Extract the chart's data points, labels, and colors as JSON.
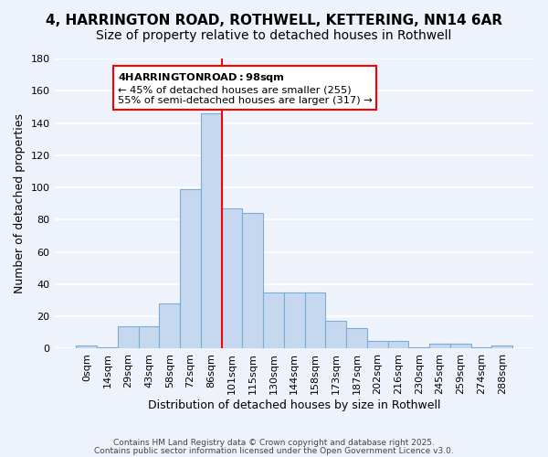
{
  "title": "4, HARRINGTON ROAD, ROTHWELL, KETTERING, NN14 6AR",
  "subtitle": "Size of property relative to detached houses in Rothwell",
  "xlabel": "Distribution of detached houses by size in Rothwell",
  "ylabel": "Number of detached properties",
  "bin_labels": [
    "0sqm",
    "14sqm",
    "29sqm",
    "43sqm",
    "58sqm",
    "72sqm",
    "86sqm",
    "101sqm",
    "115sqm",
    "130sqm",
    "144sqm",
    "158sqm",
    "173sqm",
    "187sqm",
    "202sqm",
    "216sqm",
    "230sqm",
    "245sqm",
    "259sqm",
    "274sqm",
    "288sqm"
  ],
  "bar_values": [
    2,
    1,
    14,
    14,
    28,
    99,
    146,
    87,
    84,
    35,
    35,
    35,
    17,
    13,
    5,
    5,
    1,
    3,
    3,
    1,
    2
  ],
  "bar_color": "#c5d8f0",
  "bar_edge_color": "#7bacd4",
  "vline_x": 6.5,
  "vline_color": "red",
  "annotation_title": "4 HARRINGTON ROAD: 98sqm",
  "annotation_line1": "← 45% of detached houses are smaller (255)",
  "annotation_line2": "55% of semi-detached houses are larger (317) →",
  "annotation_box_color": "white",
  "annotation_box_edge": "red",
  "ylim": [
    0,
    180
  ],
  "yticks": [
    0,
    20,
    40,
    60,
    80,
    100,
    120,
    140,
    160,
    180
  ],
  "footer1": "Contains HM Land Registry data © Crown copyright and database right 2025.",
  "footer2": "Contains public sector information licensed under the Open Government Licence v3.0.",
  "background_color": "#eef2fb",
  "grid_color": "white",
  "title_fontsize": 11,
  "subtitle_fontsize": 10,
  "axis_label_fontsize": 9,
  "tick_fontsize": 8
}
